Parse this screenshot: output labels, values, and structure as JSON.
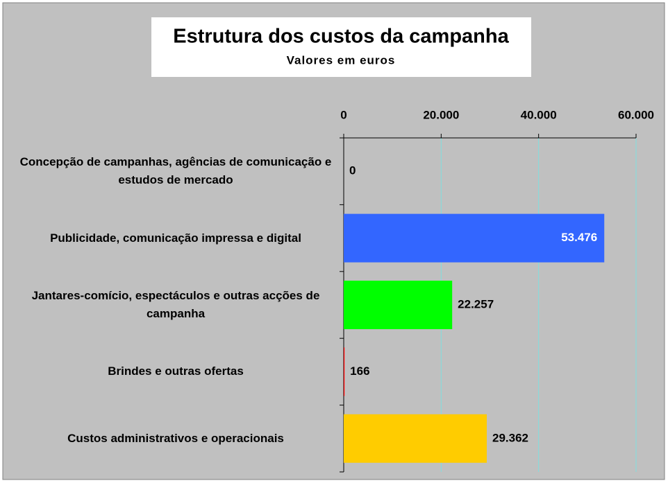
{
  "chart_data": {
    "type": "barh",
    "title": "Estrutura dos custos da campanha",
    "subtitle": "Valores em euros",
    "categories": [
      "Concepção de campanhas, agências de comunicação e estudos de mercado",
      "Publicidade, comunicação impressa e digital",
      "Jantares-comício, espectáculos e outras acções de campanha",
      "Brindes e outras ofertas",
      "Custos administrativos e operacionais"
    ],
    "values": [
      0,
      53476,
      22257,
      166,
      29362
    ],
    "value_labels": [
      "0",
      "53.476",
      "22.257",
      "166",
      "29.362"
    ],
    "colors": [
      "#3366ff",
      "#3366ff",
      "#00ff00",
      "#ff0000",
      "#ffcc00"
    ],
    "xlim": [
      0,
      60000
    ],
    "xticks": [
      0,
      {
        "value": 20000,
        "label": "20.000"
      },
      {
        "value": 40000,
        "label": "40.000"
      },
      {
        "value": 60000,
        "label": "60.000"
      }
    ],
    "grid": true
  }
}
